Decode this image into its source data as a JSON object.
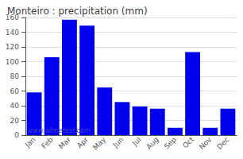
{
  "chart_data": {
    "type": "bar",
    "title": "Monteiro : precipitation (mm)",
    "categories": [
      "Jan",
      "Feb",
      "Mar",
      "Apr",
      "May",
      "Jun",
      "Jul",
      "Aug",
      "Sep",
      "Oct",
      "Nov",
      "Dec"
    ],
    "values": [
      58,
      106,
      157,
      149,
      65,
      45,
      39,
      36,
      10,
      113,
      10,
      36
    ],
    "color": "#0000ee",
    "ylim": [
      0,
      160
    ],
    "yticks": [
      0,
      20,
      40,
      60,
      80,
      100,
      120,
      140,
      160
    ],
    "grid": true,
    "annotations": [
      "www.allmetsat.com"
    ]
  }
}
